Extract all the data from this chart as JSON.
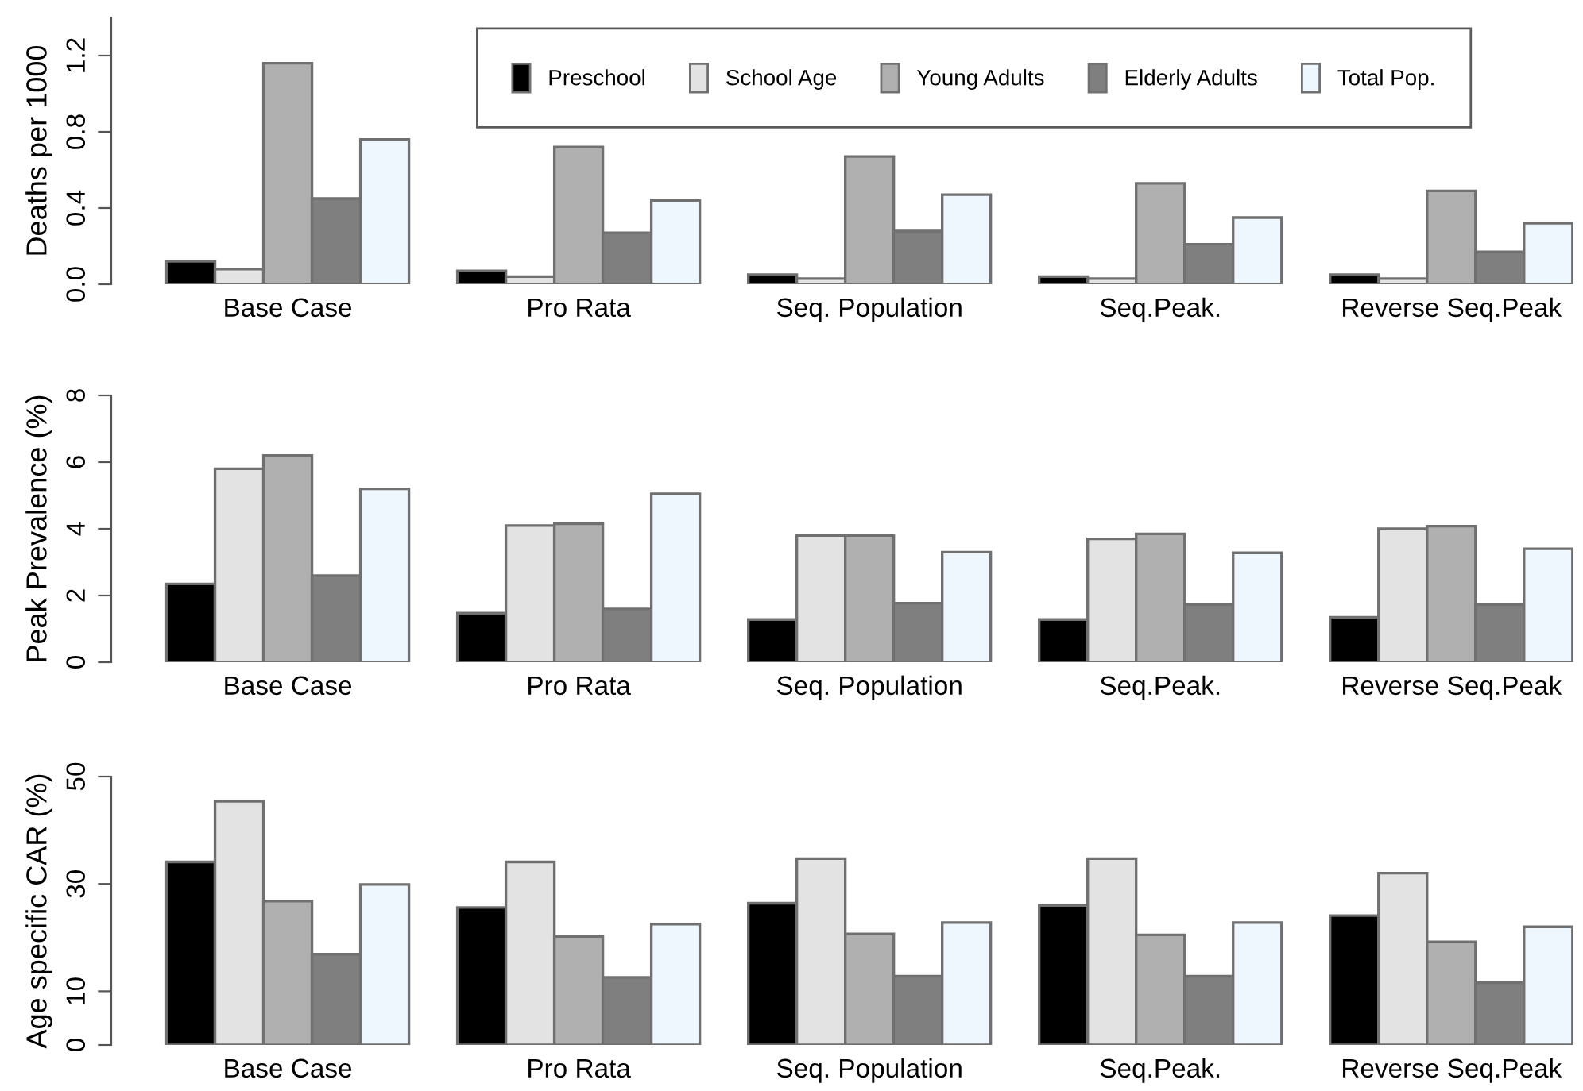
{
  "chart_data": [
    {
      "type": "bar",
      "ylabel": "Deaths per 1000",
      "categories": [
        "Base Case",
        "Pro Rata",
        "Seq. Population",
        "Seq.Peak.",
        "Reverse Seq.Peak"
      ],
      "ylim": [
        0,
        1.4
      ],
      "yticks": [
        {
          "value": 0,
          "label": "0.0"
        },
        0.4,
        0.8,
        1.2
      ],
      "legend": "top",
      "series": [
        {
          "name": "Preschool",
          "color": "#000000",
          "values": [
            0.12,
            0.07,
            0.05,
            0.04,
            0.05
          ]
        },
        {
          "name": "School Age",
          "color": "#e3e3e3",
          "values": [
            0.08,
            0.04,
            0.03,
            0.03,
            0.03
          ]
        },
        {
          "name": "Young Adults",
          "color": "#b0b0b0",
          "values": [
            1.16,
            0.72,
            0.67,
            0.53,
            0.49
          ]
        },
        {
          "name": "Elderly Adults",
          "color": "#7f7f7f",
          "values": [
            0.45,
            0.27,
            0.28,
            0.21,
            0.17
          ]
        },
        {
          "name": "Total Pop.",
          "color": "#eef6fe",
          "values": [
            0.76,
            0.44,
            0.47,
            0.35,
            0.32
          ]
        }
      ]
    },
    {
      "type": "bar",
      "ylabel": "Peak Prevalence (%)",
      "categories": [
        "Base Case",
        "Pro Rata",
        "Seq. Population",
        "Seq.Peak.",
        "Reverse Seq.Peak"
      ],
      "ylim": [
        0,
        8
      ],
      "yticks": [
        0,
        2,
        4,
        6,
        8
      ],
      "series": [
        {
          "color": "#000000",
          "values": [
            2.35,
            1.47,
            1.28,
            1.28,
            1.35
          ]
        },
        {
          "color": "#e3e3e3",
          "values": [
            5.8,
            4.1,
            3.8,
            3.7,
            4.0
          ]
        },
        {
          "color": "#b0b0b0",
          "values": [
            6.2,
            4.15,
            3.8,
            3.85,
            4.08
          ]
        },
        {
          "color": "#7f7f7f",
          "values": [
            2.6,
            1.6,
            1.77,
            1.73,
            1.73
          ]
        },
        {
          "color": "#eef6fe",
          "values": [
            5.2,
            5.05,
            3.3,
            3.28,
            3.4
          ]
        }
      ]
    },
    {
      "type": "bar",
      "ylabel": "Age specific CAR (%)",
      "categories": [
        "Base Case",
        "Pro Rata",
        "Seq. Population",
        "Seq.Peak.",
        "Reverse Seq.Peak"
      ],
      "ylim": [
        0,
        50
      ],
      "yticks": [
        0,
        10,
        30,
        50
      ],
      "series": [
        {
          "color": "#000000",
          "values": [
            34.1,
            25.6,
            26.4,
            26,
            24.1
          ]
        },
        {
          "color": "#e3e3e3",
          "values": [
            45.4,
            34.1,
            34.7,
            34.7,
            32
          ]
        },
        {
          "color": "#b0b0b0",
          "values": [
            26.8,
            20.2,
            20.7,
            20.5,
            19.2
          ]
        },
        {
          "color": "#7f7f7f",
          "values": [
            16.9,
            12.6,
            12.8,
            12.8,
            11.6
          ]
        },
        {
          "color": "#eef6fe",
          "values": [
            29.9,
            22.5,
            22.8,
            22.8,
            22
          ]
        }
      ]
    }
  ]
}
